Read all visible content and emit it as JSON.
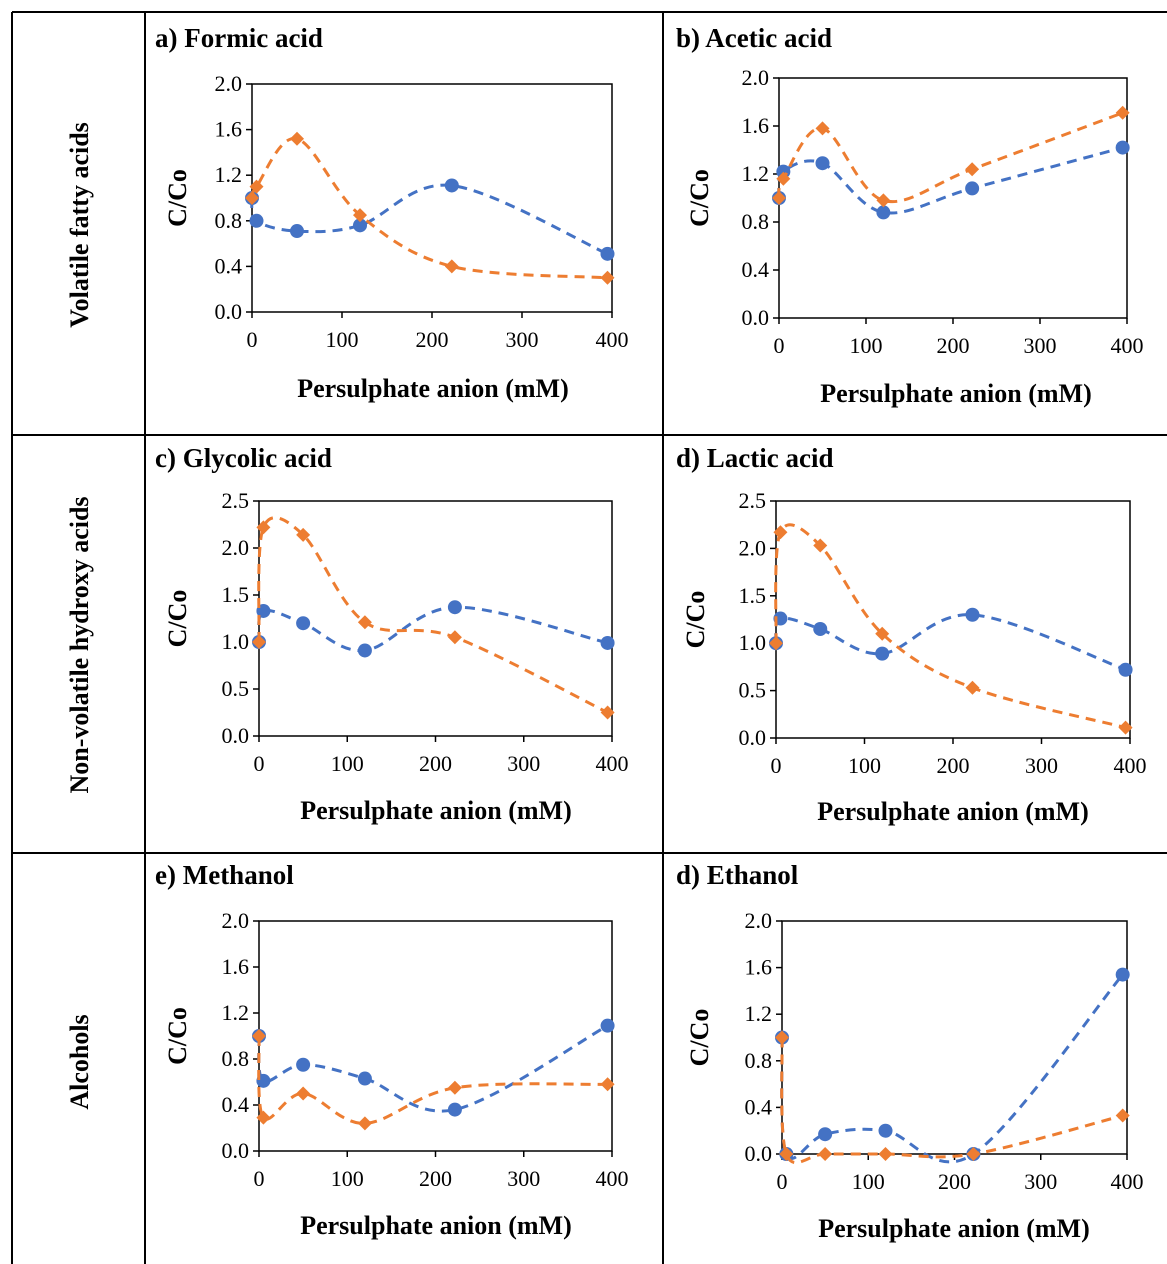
{
  "row_labels": [
    "Volatile fatty acids",
    "Non-volatile hydroxy acids",
    "Alcohols"
  ],
  "colors": {
    "series_blue": "#4472C4",
    "series_orange": "#ED7D31",
    "table_border": "#000000"
  },
  "chart_data": [
    {
      "type": "scatter",
      "title": "a) Formic acid",
      "xlabel": "Persulphate anion (mM)",
      "ylabel": "C/Co",
      "xlim": [
        0,
        400
      ],
      "ylim": [
        0,
        2.0
      ],
      "xticks": [
        "0",
        "100",
        "200",
        "300",
        "400"
      ],
      "yticks": [
        "0.0",
        "0.4",
        "0.8",
        "1.2",
        "1.6",
        "2.0"
      ],
      "grid": false,
      "series": [
        {
          "color": "#4472C4",
          "marker": "circle",
          "x": [
            0,
            5,
            50,
            120,
            222,
            395
          ],
          "y": [
            1.0,
            0.8,
            0.71,
            0.76,
            1.11,
            0.51
          ]
        },
        {
          "color": "#ED7D31",
          "marker": "diamond",
          "x": [
            0,
            5,
            50,
            120,
            222,
            395
          ],
          "y": [
            1.0,
            1.1,
            1.52,
            0.85,
            0.4,
            0.3
          ]
        }
      ]
    },
    {
      "type": "scatter",
      "title": "b) Acetic acid",
      "xlabel": "Persulphate anion (mM)",
      "ylabel": "C/Co",
      "xlim": [
        0,
        400
      ],
      "ylim": [
        0,
        2.0
      ],
      "xticks": [
        "0",
        "100",
        "200",
        "300",
        "400"
      ],
      "yticks": [
        "0.0",
        "0.4",
        "0.8",
        "1.2",
        "1.6",
        "2.0"
      ],
      "grid": false,
      "series": [
        {
          "color": "#4472C4",
          "marker": "circle",
          "x": [
            0,
            5,
            50,
            120,
            222,
            395
          ],
          "y": [
            1.0,
            1.22,
            1.29,
            0.88,
            1.08,
            1.42
          ]
        },
        {
          "color": "#ED7D31",
          "marker": "diamond",
          "x": [
            0,
            5,
            50,
            120,
            222,
            395
          ],
          "y": [
            1.0,
            1.16,
            1.58,
            0.98,
            1.24,
            1.71
          ]
        }
      ]
    },
    {
      "type": "scatter",
      "title": "c) Glycolic acid",
      "xlabel": "Persulphate anion (mM)",
      "ylabel": "C/Co",
      "xlim": [
        0,
        400
      ],
      "ylim": [
        0,
        2.5
      ],
      "xticks": [
        "0",
        "100",
        "200",
        "300",
        "400"
      ],
      "yticks": [
        "0.0",
        "0.5",
        "1.0",
        "1.5",
        "2.0",
        "2.5"
      ],
      "grid": false,
      "series": [
        {
          "color": "#4472C4",
          "marker": "circle",
          "x": [
            0,
            5,
            50,
            120,
            222,
            395
          ],
          "y": [
            1.0,
            1.33,
            1.2,
            0.91,
            1.37,
            0.99
          ]
        },
        {
          "color": "#ED7D31",
          "marker": "diamond",
          "x": [
            0,
            5,
            50,
            120,
            222,
            395
          ],
          "y": [
            1.0,
            2.22,
            2.14,
            1.21,
            1.05,
            0.25
          ]
        }
      ]
    },
    {
      "type": "scatter",
      "title": "d) Lactic acid",
      "xlabel": "Persulphate anion (mM)",
      "ylabel": "C/Co",
      "xlim": [
        0,
        400
      ],
      "ylim": [
        0,
        2.5
      ],
      "xticks": [
        "0",
        "100",
        "200",
        "300",
        "400"
      ],
      "yticks": [
        "0.0",
        "0.5",
        "1.0",
        "1.5",
        "2.0",
        "2.5"
      ],
      "grid": false,
      "series": [
        {
          "color": "#4472C4",
          "marker": "circle",
          "x": [
            0,
            5,
            50,
            120,
            222,
            395
          ],
          "y": [
            1.0,
            1.26,
            1.15,
            0.89,
            1.3,
            0.72
          ]
        },
        {
          "color": "#ED7D31",
          "marker": "diamond",
          "x": [
            0,
            5,
            50,
            120,
            222,
            395
          ],
          "y": [
            1.0,
            2.17,
            2.03,
            1.1,
            0.53,
            0.11
          ]
        }
      ]
    },
    {
      "type": "scatter",
      "title": "e) Methanol",
      "xlabel": "Persulphate anion (mM)",
      "ylabel": "C/Co",
      "xlim": [
        0,
        400
      ],
      "ylim": [
        0,
        2.0
      ],
      "xticks": [
        "0",
        "100",
        "200",
        "300",
        "400"
      ],
      "yticks": [
        "0.0",
        "0.4",
        "0.8",
        "1.2",
        "1.6",
        "2.0"
      ],
      "grid": false,
      "series": [
        {
          "color": "#4472C4",
          "marker": "circle",
          "x": [
            0,
            5,
            50,
            120,
            222,
            395
          ],
          "y": [
            1.0,
            0.61,
            0.75,
            0.63,
            0.36,
            1.09
          ]
        },
        {
          "color": "#ED7D31",
          "marker": "diamond",
          "x": [
            0,
            5,
            50,
            120,
            222,
            395
          ],
          "y": [
            1.0,
            0.29,
            0.5,
            0.24,
            0.55,
            0.58
          ]
        }
      ]
    },
    {
      "type": "scatter",
      "title": "d) Ethanol",
      "xlabel": "Persulphate anion (mM)",
      "ylabel": "C/Co",
      "xlim": [
        0,
        400
      ],
      "ylim": [
        0,
        2.0
      ],
      "xticks": [
        "0",
        "100",
        "200",
        "300",
        "400"
      ],
      "yticks": [
        "0.0",
        "0.4",
        "0.8",
        "1.2",
        "1.6",
        "2.0"
      ],
      "grid": false,
      "series": [
        {
          "color": "#4472C4",
          "marker": "circle",
          "x": [
            0,
            5,
            50,
            120,
            222,
            395
          ],
          "y": [
            1.0,
            0.0,
            0.17,
            0.2,
            0.0,
            1.54
          ]
        },
        {
          "color": "#ED7D31",
          "marker": "diamond",
          "x": [
            0,
            5,
            50,
            120,
            222,
            395
          ],
          "y": [
            1.0,
            0.0,
            0.0,
            0.0,
            0.0,
            0.33
          ]
        }
      ]
    }
  ]
}
